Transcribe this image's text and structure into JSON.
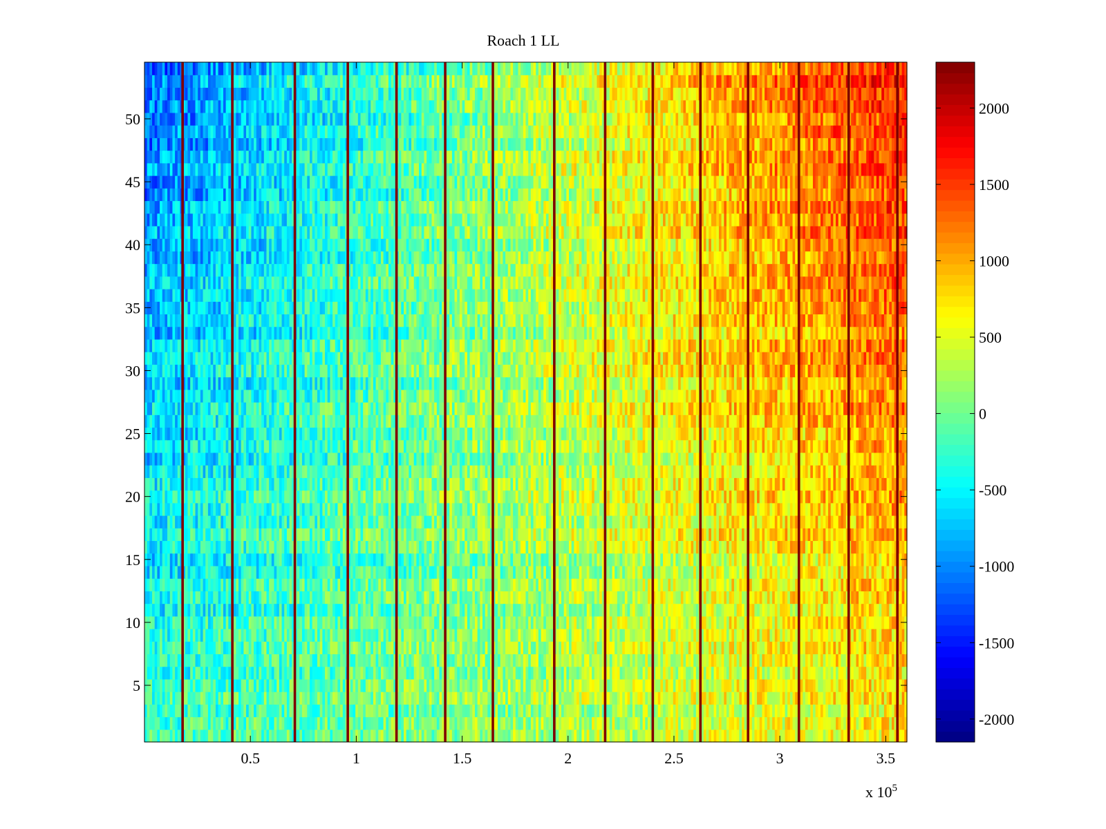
{
  "chart_data": {
    "type": "heatmap",
    "title": "Roach 1 LL",
    "xlabel": "",
    "ylabel": "",
    "x_multiplier_label": "x 10",
    "x_multiplier_exponent": "5",
    "xlim": [
      0,
      3.6
    ],
    "ylim": [
      0.5,
      54.5
    ],
    "x_ticks": [
      0.5,
      1,
      1.5,
      2,
      2.5,
      3,
      3.5
    ],
    "x_tick_labels": [
      "0.5",
      "1",
      "1.5",
      "2",
      "2.5",
      "3",
      "3.5"
    ],
    "y_ticks": [
      5,
      10,
      15,
      20,
      25,
      30,
      35,
      40,
      45,
      50
    ],
    "y_tick_labels": [
      "5",
      "10",
      "15",
      "20",
      "25",
      "30",
      "35",
      "40",
      "45",
      "50"
    ],
    "rows": 54,
    "colormap": "jet",
    "clim": [
      -2150,
      2300
    ],
    "colorbar_ticks": [
      2000,
      1500,
      1000,
      500,
      0,
      -500,
      -1000,
      -1500,
      -2000
    ],
    "colorbar_tick_labels": [
      "2000",
      "1500",
      "1000",
      "500",
      "0",
      "-500",
      "-1000",
      "-1500",
      "-2000"
    ],
    "trend_description": "values rise from about -700 at left to about +1200 at right; upper rows colder at left and hotter at right",
    "bright_stripes_x": [
      0.18,
      0.415,
      0.71,
      0.96,
      1.19,
      1.42,
      1.645,
      1.935,
      2.175,
      2.4,
      2.625,
      2.85,
      3.09,
      3.325,
      3.555
    ],
    "stripe_value": 2300
  }
}
